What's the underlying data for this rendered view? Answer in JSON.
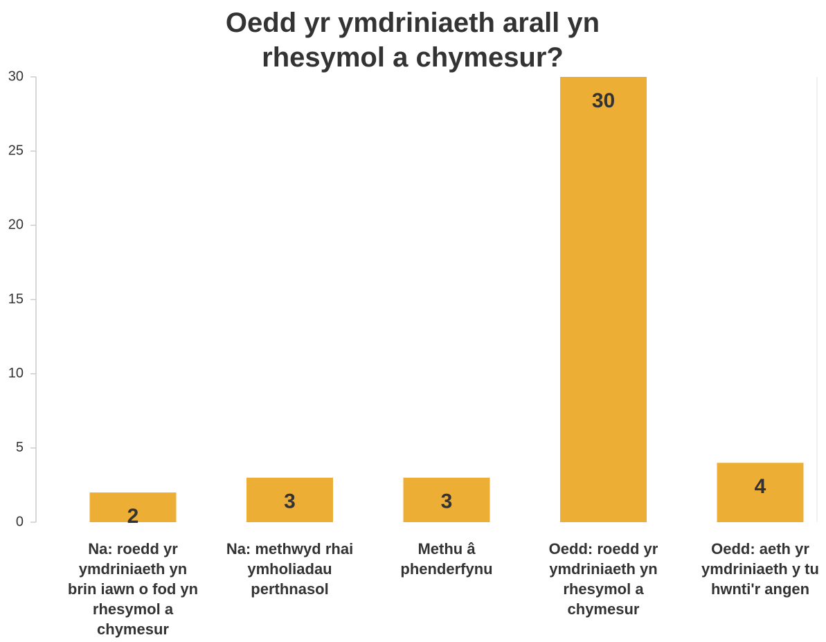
{
  "chart_data": {
    "type": "bar",
    "title": "Oedd yr ymdriniaeth arall yn rhesymol a chymesur?",
    "categories": [
      "Na: roedd yr ymdriniaeth yn brin iawn o fod yn rhesymol a chymesur",
      "Na: methwyd rhai ymholiadau perthnasol",
      "Methu â phenderfynu",
      "Oedd: roedd yr ymdriniaeth yn rhesymol a chymesur",
      "Oedd: aeth yr ymdriniaeth y tu hwnti'r angen"
    ],
    "values": [
      2,
      3,
      3,
      30,
      4
    ],
    "color": "#edae35",
    "ylim": [
      0,
      30
    ],
    "yticks": [
      0,
      5,
      10,
      15,
      20,
      25,
      30
    ],
    "grid": false
  }
}
